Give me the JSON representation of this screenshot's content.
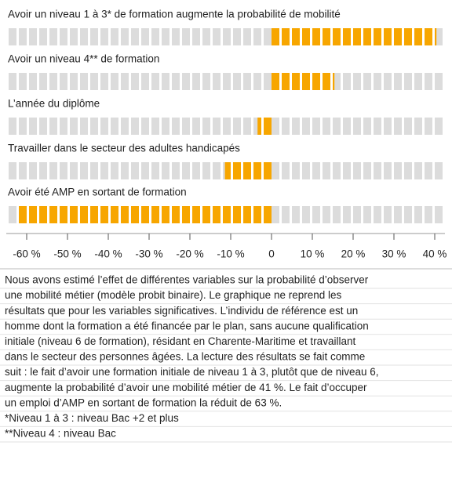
{
  "chart_data": {
    "type": "hbar",
    "categories": [
      "Avoir un niveau 1 à 3* de formation augmente la probabilité de mobilité",
      "Avoir un niveau 4** de formation",
      "L’année du diplôme",
      "Travailler dans le secteur des adultes handicapés",
      "Avoir été AMP en sortant de formation"
    ],
    "values": [
      41,
      16,
      -4,
      -12,
      -63
    ],
    "color": "#f7a600",
    "xlim": [
      -65,
      42.5
    ],
    "xticks": [
      {
        "value": -60,
        "label": "-60 %"
      },
      {
        "value": -50,
        "label": "-50 %"
      },
      {
        "value": -40,
        "label": "-40 %"
      },
      {
        "value": -30,
        "label": "-30 %"
      },
      {
        "value": -20,
        "label": "-20 %"
      },
      {
        "value": -10,
        "label": "-10 %"
      },
      0,
      {
        "value": 10,
        "label": "10 %"
      },
      {
        "value": 20,
        "label": "20 %"
      },
      {
        "value": 30,
        "label": "30 %"
      },
      {
        "value": 40,
        "label": "40 %"
      }
    ]
  },
  "notes": [
    "Nous avons estimé l’effet de différentes variables sur la probabilité d’observer",
    "une mobilité métier (modèle probit binaire). Le graphique ne reprend les",
    "résultats que pour les variables significatives. L’individu de référence est un",
    "homme dont la formation a été financée par le plan, sans aucune qualification",
    "initiale (niveau 6 de formation), résidant en Charente-Maritime et travaillant",
    "dans le secteur des personnes âgées. La lecture des résultats se fait comme",
    "suit : le fait d’avoir une formation initiale de niveau 1 à 3, plutôt que de niveau 6,",
    "augmente la probabilité d’avoir une mobilité métier de 41 %. Le fait d’occuper",
    "un emploi d’AMP en sortant de formation la réduit de 63 %.",
    "*Niveau 1 à 3 : niveau Bac +2 et plus",
    "**Niveau 4 : niveau Bac"
  ]
}
